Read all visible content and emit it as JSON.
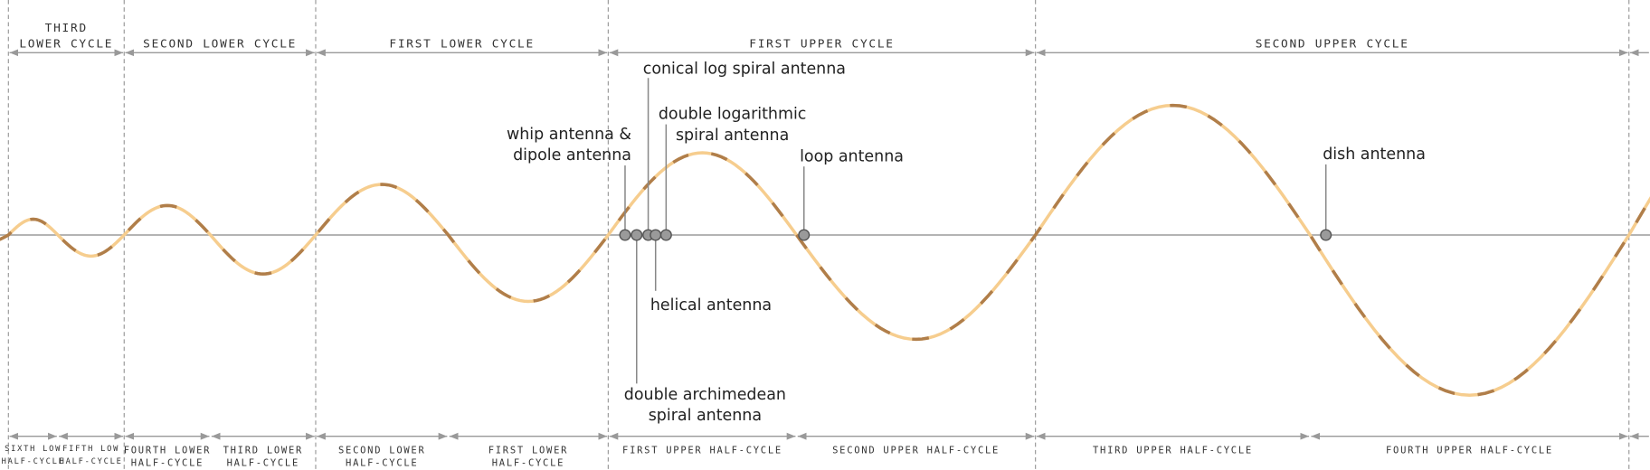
{
  "top_cycles": [
    {
      "lines": [
        "THIRD",
        "LOWER CYCLE"
      ]
    },
    {
      "lines": [
        "SECOND LOWER CYCLE"
      ]
    },
    {
      "lines": [
        "FIRST LOWER CYCLE"
      ]
    },
    {
      "lines": [
        "FIRST UPPER CYCLE"
      ]
    },
    {
      "lines": [
        "SECOND UPPER CYCLE"
      ]
    }
  ],
  "half_cycles": [
    {
      "lines": [
        "SIXTH LOW",
        "HALF-CYCLE"
      ]
    },
    {
      "lines": [
        "FIFTH LOW",
        "HALF-CYCLE"
      ]
    },
    {
      "lines": [
        "FOURTH LOWER",
        "HALF-CYCLE"
      ]
    },
    {
      "lines": [
        "THIRD LOWER",
        "HALF-CYCLE"
      ]
    },
    {
      "lines": [
        "SECOND LOWER",
        "HALF-CYCLE"
      ]
    },
    {
      "lines": [
        "FIRST LOWER",
        "HALF-CYCLE"
      ]
    },
    {
      "lines": [
        "FIRST UPPER HALF-CYCLE"
      ]
    },
    {
      "lines": [
        "SECOND UPPER HALF-CYCLE"
      ]
    },
    {
      "lines": [
        "THIRD UPPER HALF-CYCLE"
      ]
    },
    {
      "lines": [
        "FOURTH UPPER HALF-CYCLE"
      ]
    }
  ],
  "antennas": [
    {
      "lines": [
        "whip antenna &",
        "dipole antenna"
      ]
    },
    {
      "lines": [
        "double archimedean",
        "spiral antenna"
      ]
    },
    {
      "lines": [
        "conical log spiral antenna"
      ]
    },
    {
      "lines": [
        "helical antenna"
      ]
    },
    {
      "lines": [
        "double logarithmic",
        "spiral antenna"
      ]
    },
    {
      "lines": [
        "loop antenna"
      ]
    },
    {
      "lines": [
        "dish antenna"
      ]
    }
  ]
}
